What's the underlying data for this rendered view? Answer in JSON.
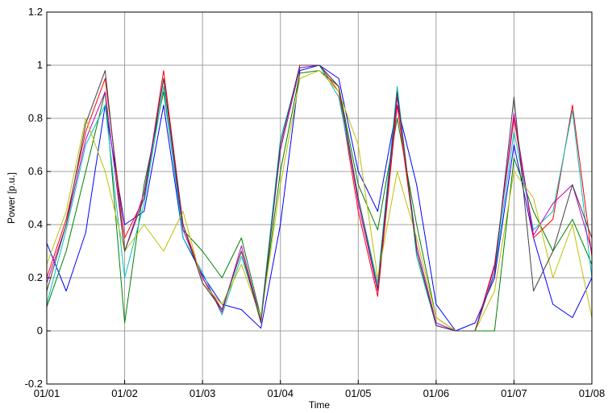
{
  "chart_data": {
    "type": "line",
    "title": "",
    "xlabel": "Time",
    "ylabel": "Power [p.u.]",
    "xlim": [
      0,
      7
    ],
    "ylim": [
      -0.2,
      1.2
    ],
    "grid": true,
    "x_ticks": [
      0,
      1,
      2,
      3,
      4,
      5,
      6,
      7
    ],
    "x_tick_labels": [
      "01/01",
      "01/02",
      "01/03",
      "01/04",
      "01/05",
      "01/06",
      "01/07",
      "01/08"
    ],
    "y_ticks": [
      -0.2,
      0,
      0.2,
      0.4,
      0.6,
      0.8,
      1,
      1.2
    ],
    "y_tick_labels": [
      "-0.2",
      "0",
      "0.2",
      "0.4",
      "0.6",
      "0.8",
      "1",
      "1.2"
    ],
    "series": [
      {
        "color": "#0000ff",
        "x": [
          0,
          0.25,
          0.5,
          0.75,
          1,
          1.25,
          1.5,
          1.75,
          2,
          2.25,
          2.5,
          2.75,
          3,
          3.25,
          3.5,
          3.75,
          4,
          4.25,
          4.5,
          4.75,
          5,
          5.25,
          5.5,
          5.75,
          6,
          6.25,
          6.5,
          6.75,
          7
        ],
        "y": [
          0.33,
          0.15,
          0.37,
          0.85,
          0.4,
          0.45,
          0.85,
          0.35,
          0.21,
          0.1,
          0.08,
          0.01,
          0.4,
          0.98,
          1.0,
          0.95,
          0.6,
          0.45,
          0.85,
          0.55,
          0.1,
          0.0,
          0.03,
          0.2,
          0.7,
          0.35,
          0.1,
          0.05,
          0.2
        ]
      },
      {
        "color": "#008000",
        "x": [
          0,
          0.25,
          0.5,
          0.75,
          1,
          1.25,
          1.5,
          1.75,
          2,
          2.25,
          2.5,
          2.75,
          3,
          3.25,
          3.5,
          3.75,
          4,
          4.25,
          4.5,
          4.75,
          5,
          5.25,
          5.5,
          5.75,
          6,
          6.25,
          6.5,
          6.75,
          7
        ],
        "y": [
          0.09,
          0.3,
          0.6,
          0.9,
          0.03,
          0.55,
          0.9,
          0.38,
          0.3,
          0.2,
          0.35,
          0.05,
          0.6,
          0.97,
          0.98,
          0.92,
          0.55,
          0.38,
          0.8,
          0.4,
          0.05,
          0.0,
          0.0,
          0.0,
          0.65,
          0.45,
          0.3,
          0.42,
          0.25
        ]
      },
      {
        "color": "#ff0000",
        "x": [
          0,
          0.25,
          0.5,
          0.75,
          1,
          1.25,
          1.5,
          1.75,
          2,
          2.25,
          2.5,
          2.75,
          3,
          3.25,
          3.5,
          3.75,
          4,
          4.25,
          4.5,
          4.75,
          5,
          5.25,
          5.5,
          5.75,
          6,
          6.25,
          6.5,
          6.75,
          7
        ],
        "y": [
          0.2,
          0.42,
          0.75,
          0.95,
          0.35,
          0.5,
          0.98,
          0.4,
          0.2,
          0.08,
          0.3,
          0.04,
          0.7,
          1.0,
          1.0,
          0.9,
          0.45,
          0.13,
          0.85,
          0.3,
          0.02,
          0.0,
          0.0,
          0.25,
          0.8,
          0.35,
          0.42,
          0.85,
          0.28
        ]
      },
      {
        "color": "#00bfbf",
        "x": [
          0,
          0.25,
          0.5,
          0.75,
          1,
          1.25,
          1.5,
          1.75,
          2,
          2.25,
          2.5,
          2.75,
          3,
          3.25,
          3.5,
          3.75,
          4,
          4.25,
          4.5,
          4.75,
          5,
          5.25,
          5.5,
          5.75,
          6,
          6.25,
          6.5,
          6.75,
          7
        ],
        "y": [
          0.1,
          0.38,
          0.7,
          0.85,
          0.2,
          0.48,
          0.92,
          0.35,
          0.22,
          0.06,
          0.28,
          0.05,
          0.72,
          0.99,
          1.0,
          0.88,
          0.5,
          0.18,
          0.92,
          0.28,
          0.02,
          0.0,
          0.0,
          0.22,
          0.75,
          0.38,
          0.45,
          0.83,
          0.2
        ]
      },
      {
        "color": "#bf00bf",
        "x": [
          0,
          0.25,
          0.5,
          0.75,
          1,
          1.25,
          1.5,
          1.75,
          2,
          2.25,
          2.5,
          2.75,
          3,
          3.25,
          3.5,
          3.75,
          4,
          4.25,
          4.5,
          4.75,
          5,
          5.25,
          5.5,
          5.75,
          6,
          6.25,
          6.5,
          6.75,
          7
        ],
        "y": [
          0.18,
          0.4,
          0.72,
          0.9,
          0.3,
          0.52,
          0.95,
          0.38,
          0.2,
          0.07,
          0.32,
          0.04,
          0.68,
          0.99,
          1.0,
          0.92,
          0.48,
          0.15,
          0.88,
          0.32,
          0.03,
          0.0,
          0.0,
          0.24,
          0.82,
          0.36,
          0.48,
          0.55,
          0.3
        ]
      },
      {
        "color": "#bfbf00",
        "x": [
          0,
          0.25,
          0.5,
          0.75,
          1,
          1.25,
          1.5,
          1.75,
          2,
          2.25,
          2.5,
          2.75,
          3,
          3.25,
          3.5,
          3.75,
          4,
          4.25,
          4.5,
          4.75,
          5,
          5.25,
          5.5,
          5.75,
          6,
          6.25,
          6.5,
          6.75,
          7
        ],
        "y": [
          0.25,
          0.45,
          0.8,
          0.6,
          0.3,
          0.4,
          0.3,
          0.45,
          0.18,
          0.1,
          0.25,
          0.05,
          0.55,
          0.95,
          0.98,
          0.9,
          0.7,
          0.2,
          0.6,
          0.35,
          0.05,
          0.0,
          0.0,
          0.15,
          0.6,
          0.5,
          0.2,
          0.4,
          0.05
        ]
      },
      {
        "color": "#404040",
        "x": [
          0,
          0.25,
          0.5,
          0.75,
          1,
          1.25,
          1.5,
          1.75,
          2,
          2.25,
          2.5,
          2.75,
          3,
          3.25,
          3.5,
          3.75,
          4,
          4.25,
          4.5,
          4.75,
          5,
          5.25,
          5.5,
          5.75,
          6,
          6.25,
          6.5,
          6.75,
          7
        ],
        "y": [
          0.15,
          0.4,
          0.78,
          0.98,
          0.3,
          0.5,
          0.95,
          0.4,
          0.18,
          0.08,
          0.3,
          0.03,
          0.7,
          1.0,
          1.0,
          0.92,
          0.5,
          0.16,
          0.9,
          0.3,
          0.02,
          0.0,
          0.0,
          0.22,
          0.88,
          0.15,
          0.3,
          0.55,
          0.35
        ]
      }
    ]
  }
}
